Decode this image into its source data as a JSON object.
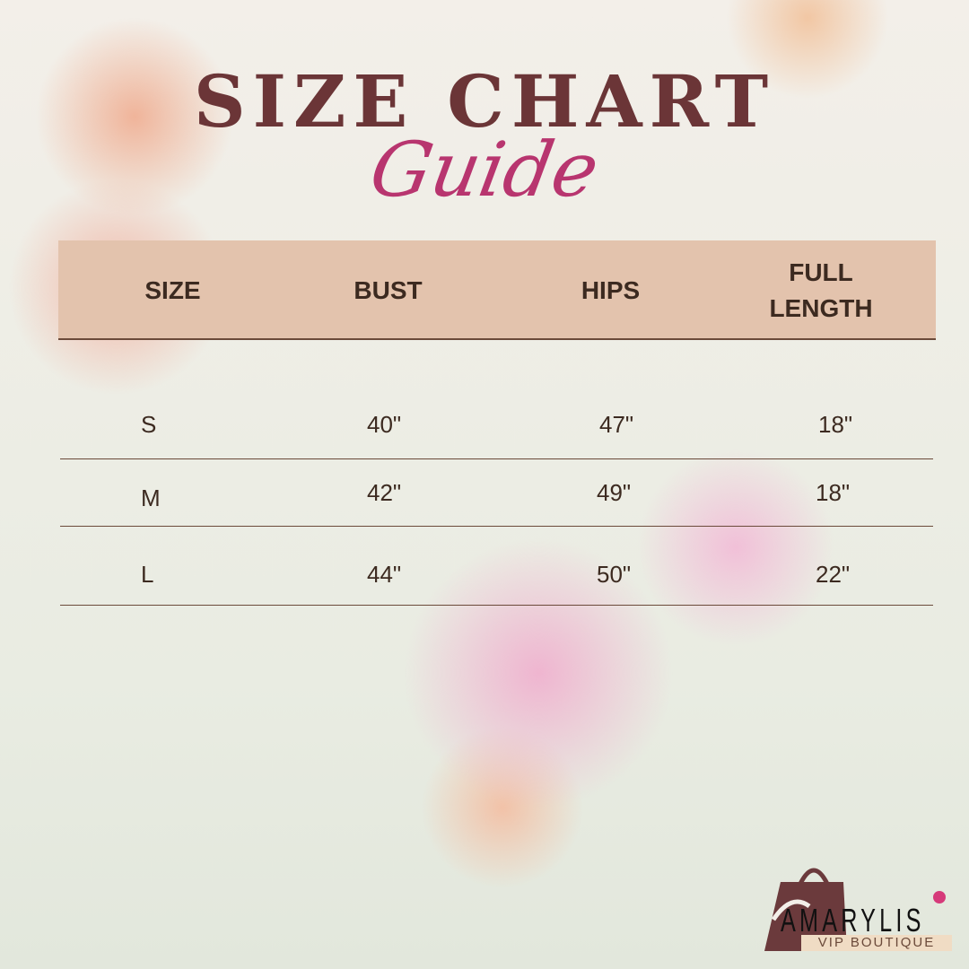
{
  "title": "SIZE CHART",
  "subtitle": "Guide",
  "table": {
    "headers": [
      "SIZE",
      "BUST",
      "HIPS",
      "FULL LENGTH"
    ],
    "rows": [
      [
        "S",
        "40\"",
        "47\"",
        "18\""
      ],
      [
        "M",
        "42\"",
        "49\"",
        "18\""
      ],
      [
        "L",
        "44\"",
        "50\"",
        "22\""
      ]
    ]
  },
  "logo": {
    "brand": "AMARYLIS",
    "tagline": "VIP BOUTIQUE"
  },
  "colors": {
    "title": "#6b3537",
    "script": "#b8356f",
    "header_bg": "#e3c3ad",
    "text": "#3c2a20"
  }
}
